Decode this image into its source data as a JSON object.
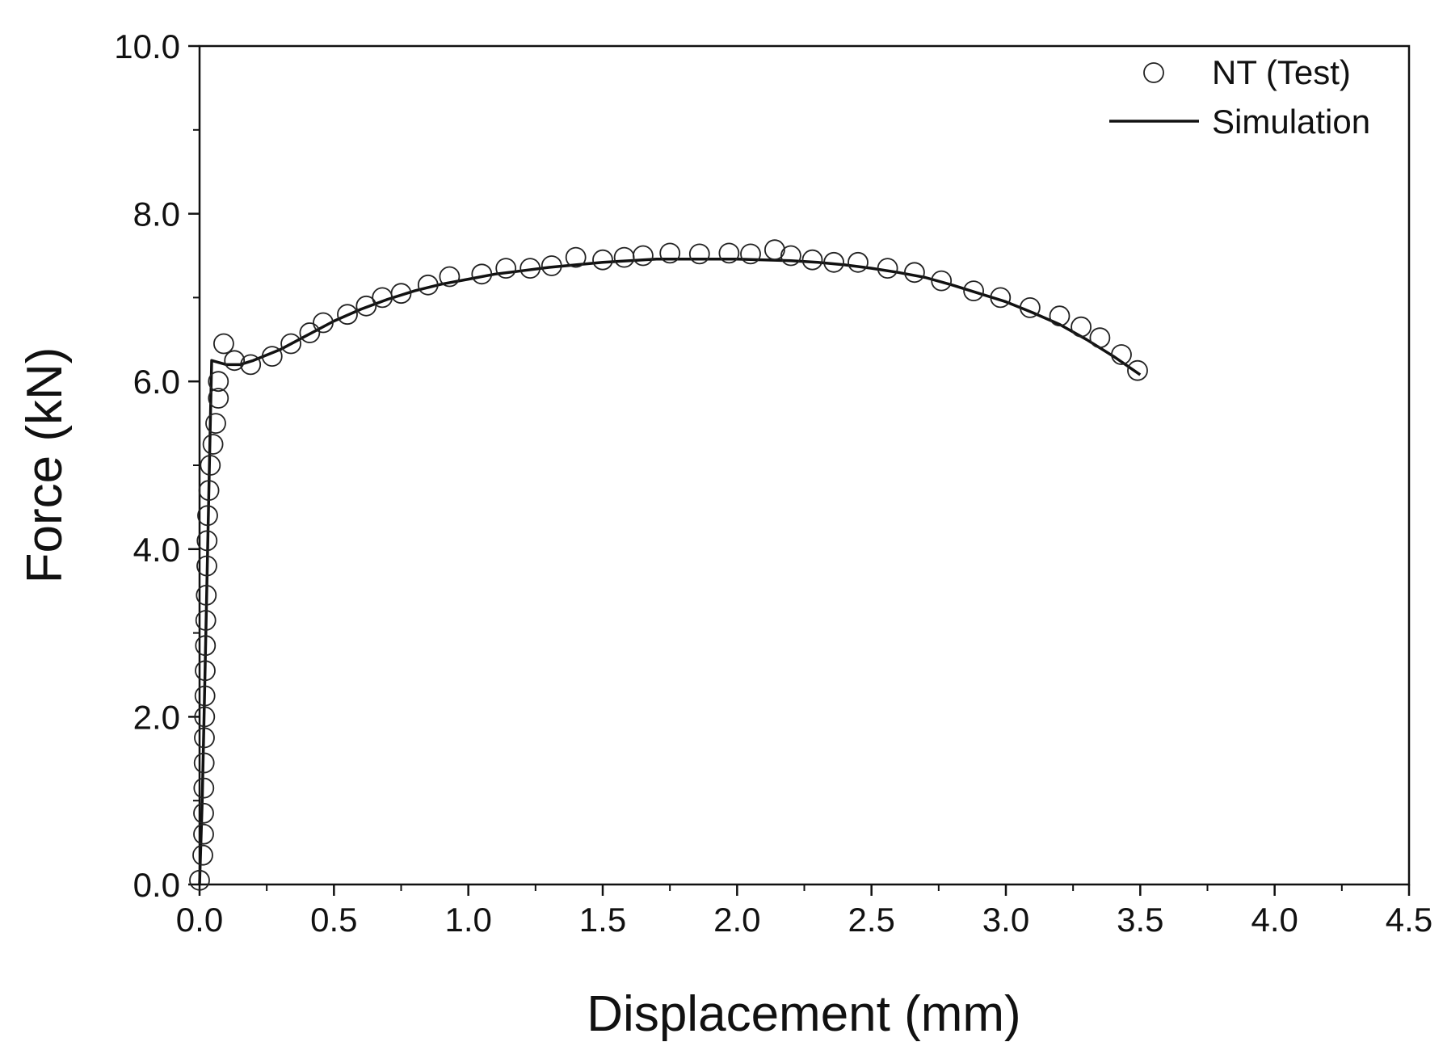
{
  "chart_data": {
    "type": "scatter",
    "title": "",
    "xlabel": "Displacement (mm)",
    "ylabel": "Force (kN)",
    "xlim": [
      0.0,
      4.5
    ],
    "ylim": [
      0.0,
      10.0
    ],
    "x_ticks": [
      "0.0",
      "0.5",
      "1.0",
      "1.5",
      "2.0",
      "2.5",
      "3.0",
      "3.5",
      "4.0",
      "4.5"
    ],
    "y_ticks": [
      "0.0",
      "2.0",
      "4.0",
      "6.0",
      "8.0",
      "10.0"
    ],
    "grid": false,
    "legend_position": "top-right",
    "series": [
      {
        "name": "NT (Test)",
        "type": "scatter",
        "marker": "open-circle",
        "color": "#222222",
        "points": [
          [
            0.0,
            0.05
          ],
          [
            0.012,
            0.35
          ],
          [
            0.015,
            0.6
          ],
          [
            0.015,
            0.85
          ],
          [
            0.016,
            1.15
          ],
          [
            0.017,
            1.45
          ],
          [
            0.018,
            1.75
          ],
          [
            0.019,
            2.0
          ],
          [
            0.02,
            2.25
          ],
          [
            0.021,
            2.55
          ],
          [
            0.022,
            2.85
          ],
          [
            0.023,
            3.15
          ],
          [
            0.025,
            3.45
          ],
          [
            0.027,
            3.8
          ],
          [
            0.028,
            4.1
          ],
          [
            0.03,
            4.4
          ],
          [
            0.035,
            4.7
          ],
          [
            0.04,
            5.0
          ],
          [
            0.05,
            5.25
          ],
          [
            0.06,
            5.5
          ],
          [
            0.07,
            5.8
          ],
          [
            0.07,
            6.0
          ],
          [
            0.09,
            6.45
          ],
          [
            0.13,
            6.25
          ],
          [
            0.19,
            6.2
          ],
          [
            0.27,
            6.3
          ],
          [
            0.34,
            6.45
          ],
          [
            0.41,
            6.58
          ],
          [
            0.46,
            6.7
          ],
          [
            0.55,
            6.8
          ],
          [
            0.62,
            6.9
          ],
          [
            0.68,
            7.0
          ],
          [
            0.75,
            7.05
          ],
          [
            0.85,
            7.15
          ],
          [
            0.93,
            7.25
          ],
          [
            1.05,
            7.28
          ],
          [
            1.14,
            7.35
          ],
          [
            1.23,
            7.35
          ],
          [
            1.31,
            7.38
          ],
          [
            1.4,
            7.48
          ],
          [
            1.5,
            7.45
          ],
          [
            1.58,
            7.48
          ],
          [
            1.65,
            7.5
          ],
          [
            1.75,
            7.53
          ],
          [
            1.86,
            7.52
          ],
          [
            1.97,
            7.53
          ],
          [
            2.05,
            7.52
          ],
          [
            2.14,
            7.57
          ],
          [
            2.2,
            7.5
          ],
          [
            2.28,
            7.45
          ],
          [
            2.36,
            7.42
          ],
          [
            2.45,
            7.42
          ],
          [
            2.56,
            7.35
          ],
          [
            2.66,
            7.3
          ],
          [
            2.76,
            7.2
          ],
          [
            2.88,
            7.08
          ],
          [
            2.98,
            7.0
          ],
          [
            3.09,
            6.88
          ],
          [
            3.2,
            6.78
          ],
          [
            3.28,
            6.65
          ],
          [
            3.35,
            6.52
          ],
          [
            3.43,
            6.32
          ],
          [
            3.49,
            6.13
          ]
        ]
      },
      {
        "name": "Simulation",
        "type": "line",
        "color": "#111111",
        "points": [
          [
            0.0,
            0.0
          ],
          [
            0.01,
            1.0
          ],
          [
            0.02,
            2.5
          ],
          [
            0.03,
            4.0
          ],
          [
            0.04,
            5.5
          ],
          [
            0.045,
            6.25
          ],
          [
            0.1,
            6.2
          ],
          [
            0.15,
            6.2
          ],
          [
            0.2,
            6.25
          ],
          [
            0.3,
            6.38
          ],
          [
            0.4,
            6.55
          ],
          [
            0.5,
            6.72
          ],
          [
            0.6,
            6.86
          ],
          [
            0.7,
            6.98
          ],
          [
            0.8,
            7.08
          ],
          [
            0.9,
            7.16
          ],
          [
            1.0,
            7.22
          ],
          [
            1.1,
            7.28
          ],
          [
            1.2,
            7.32
          ],
          [
            1.3,
            7.36
          ],
          [
            1.4,
            7.39
          ],
          [
            1.5,
            7.42
          ],
          [
            1.6,
            7.44
          ],
          [
            1.7,
            7.46
          ],
          [
            1.8,
            7.46
          ],
          [
            1.9,
            7.46
          ],
          [
            2.0,
            7.46
          ],
          [
            2.1,
            7.45
          ],
          [
            2.2,
            7.44
          ],
          [
            2.3,
            7.42
          ],
          [
            2.4,
            7.39
          ],
          [
            2.5,
            7.35
          ],
          [
            2.6,
            7.3
          ],
          [
            2.7,
            7.24
          ],
          [
            2.8,
            7.15
          ],
          [
            2.9,
            7.05
          ],
          [
            3.0,
            6.95
          ],
          [
            3.1,
            6.82
          ],
          [
            3.2,
            6.68
          ],
          [
            3.3,
            6.5
          ],
          [
            3.4,
            6.3
          ],
          [
            3.5,
            6.08
          ]
        ]
      }
    ]
  }
}
